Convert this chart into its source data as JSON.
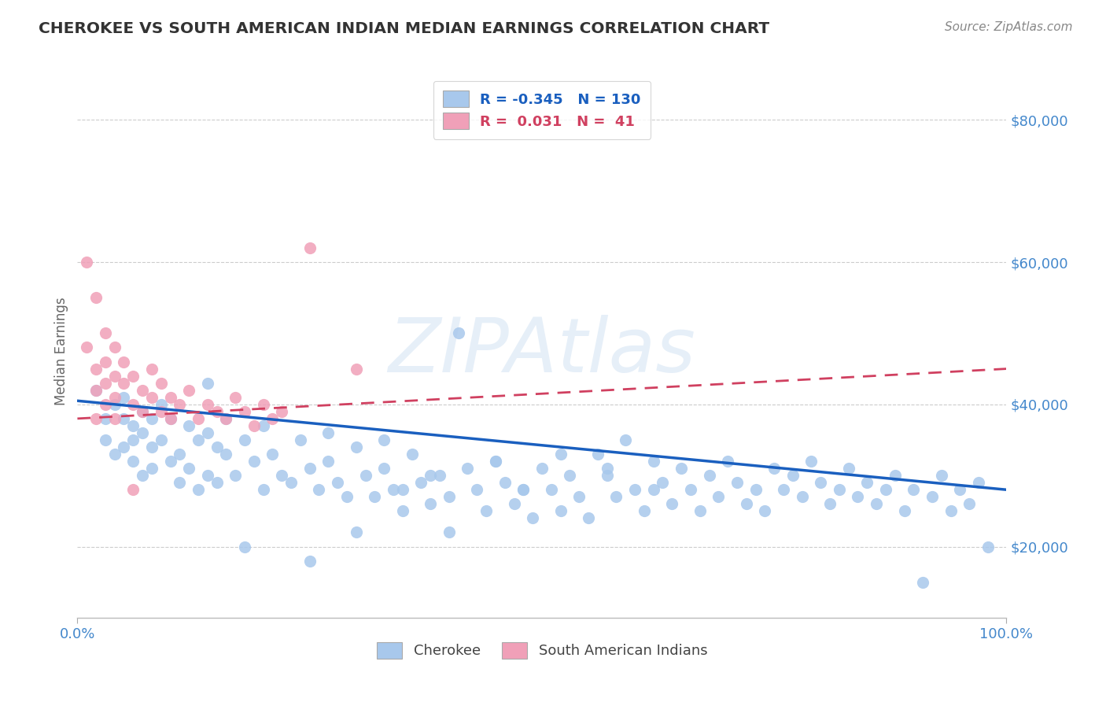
{
  "title": "CHEROKEE VS SOUTH AMERICAN INDIAN MEDIAN EARNINGS CORRELATION CHART",
  "source_text": "Source: ZipAtlas.com",
  "ylabel": "Median Earnings",
  "xlim": [
    0,
    1.0
  ],
  "ylim": [
    10000,
    85000
  ],
  "yticks": [
    20000,
    40000,
    60000,
    80000
  ],
  "cherokee_color": "#A8C8EC",
  "cherokee_line_color": "#1A5FBF",
  "cherokee_R": -0.345,
  "cherokee_N": 130,
  "sai_color": "#F0A0B8",
  "sai_line_color": "#D04060",
  "sai_R": 0.031,
  "sai_N": 41,
  "watermark": "ZIPAtlas",
  "legend_R_color": "#1A5FBF",
  "legend_R2_color": "#D04060",
  "background_color": "#FFFFFF",
  "grid_color": "#CCCCCC",
  "ytick_label_color": "#4488CC",
  "xtick_label_color": "#4488CC",
  "cherokee_x": [
    0.02,
    0.03,
    0.03,
    0.04,
    0.04,
    0.05,
    0.05,
    0.05,
    0.06,
    0.06,
    0.06,
    0.07,
    0.07,
    0.07,
    0.08,
    0.08,
    0.08,
    0.09,
    0.09,
    0.1,
    0.1,
    0.11,
    0.11,
    0.12,
    0.12,
    0.13,
    0.13,
    0.14,
    0.14,
    0.15,
    0.15,
    0.16,
    0.16,
    0.17,
    0.18,
    0.19,
    0.2,
    0.2,
    0.21,
    0.22,
    0.23,
    0.24,
    0.25,
    0.26,
    0.27,
    0.28,
    0.29,
    0.3,
    0.31,
    0.32,
    0.33,
    0.34,
    0.35,
    0.36,
    0.37,
    0.38,
    0.39,
    0.4,
    0.41,
    0.42,
    0.43,
    0.44,
    0.45,
    0.46,
    0.47,
    0.48,
    0.49,
    0.5,
    0.51,
    0.52,
    0.53,
    0.54,
    0.55,
    0.56,
    0.57,
    0.58,
    0.59,
    0.6,
    0.61,
    0.62,
    0.63,
    0.64,
    0.65,
    0.66,
    0.67,
    0.68,
    0.69,
    0.7,
    0.71,
    0.72,
    0.73,
    0.74,
    0.75,
    0.76,
    0.77,
    0.78,
    0.79,
    0.8,
    0.81,
    0.82,
    0.83,
    0.84,
    0.85,
    0.86,
    0.87,
    0.88,
    0.89,
    0.9,
    0.91,
    0.92,
    0.93,
    0.94,
    0.95,
    0.96,
    0.97,
    0.98,
    0.14,
    0.18,
    0.25,
    0.3,
    0.35,
    0.4,
    0.45,
    0.27,
    0.33,
    0.38,
    0.48,
    0.52,
    0.57,
    0.62
  ],
  "cherokee_y": [
    42000,
    38000,
    35000,
    40000,
    33000,
    41000,
    38000,
    34000,
    37000,
    35000,
    32000,
    39000,
    36000,
    30000,
    38000,
    34000,
    31000,
    40000,
    35000,
    32000,
    38000,
    33000,
    29000,
    37000,
    31000,
    35000,
    28000,
    36000,
    30000,
    34000,
    29000,
    38000,
    33000,
    30000,
    35000,
    32000,
    37000,
    28000,
    33000,
    30000,
    29000,
    35000,
    31000,
    28000,
    32000,
    29000,
    27000,
    34000,
    30000,
    27000,
    31000,
    28000,
    25000,
    33000,
    29000,
    26000,
    30000,
    27000,
    50000,
    31000,
    28000,
    25000,
    32000,
    29000,
    26000,
    28000,
    24000,
    31000,
    28000,
    25000,
    30000,
    27000,
    24000,
    33000,
    30000,
    27000,
    35000,
    28000,
    25000,
    32000,
    29000,
    26000,
    31000,
    28000,
    25000,
    30000,
    27000,
    32000,
    29000,
    26000,
    28000,
    25000,
    31000,
    28000,
    30000,
    27000,
    32000,
    29000,
    26000,
    28000,
    31000,
    27000,
    29000,
    26000,
    28000,
    30000,
    25000,
    28000,
    15000,
    27000,
    30000,
    25000,
    28000,
    26000,
    29000,
    20000,
    43000,
    20000,
    18000,
    22000,
    28000,
    22000,
    32000,
    36000,
    35000,
    30000,
    28000,
    33000,
    31000,
    28000
  ],
  "sai_x": [
    0.01,
    0.01,
    0.02,
    0.02,
    0.02,
    0.02,
    0.03,
    0.03,
    0.03,
    0.03,
    0.04,
    0.04,
    0.04,
    0.04,
    0.05,
    0.05,
    0.06,
    0.06,
    0.07,
    0.07,
    0.08,
    0.08,
    0.09,
    0.09,
    0.1,
    0.1,
    0.11,
    0.12,
    0.13,
    0.14,
    0.15,
    0.16,
    0.17,
    0.18,
    0.19,
    0.2,
    0.21,
    0.22,
    0.06,
    0.25,
    0.3
  ],
  "sai_y": [
    60000,
    48000,
    45000,
    42000,
    55000,
    38000,
    50000,
    46000,
    43000,
    40000,
    48000,
    44000,
    41000,
    38000,
    46000,
    43000,
    44000,
    40000,
    42000,
    39000,
    45000,
    41000,
    43000,
    39000,
    41000,
    38000,
    40000,
    42000,
    38000,
    40000,
    39000,
    38000,
    41000,
    39000,
    37000,
    40000,
    38000,
    39000,
    28000,
    62000,
    45000
  ],
  "cherokee_trend_x0": 0.0,
  "cherokee_trend_y0": 40500,
  "cherokee_trend_x1": 1.0,
  "cherokee_trend_y1": 28000,
  "sai_trend_x0": 0.0,
  "sai_trend_y0": 38000,
  "sai_trend_x1": 1.0,
  "sai_trend_y1": 45000
}
